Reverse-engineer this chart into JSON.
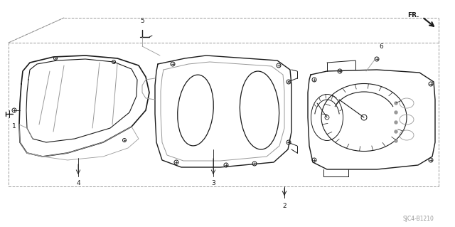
{
  "bg_color": "#ffffff",
  "line_color": "#1a1a1a",
  "gray_color": "#999999",
  "diagram_code": "SJC4-B1210",
  "figsize": [
    6.4,
    3.19
  ],
  "dpi": 100
}
